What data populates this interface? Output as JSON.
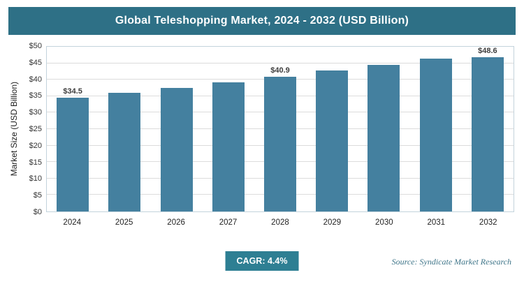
{
  "header": {
    "title": "Global Teleshopping Market, 2024 - 2032 (USD Billion)"
  },
  "chart_data": {
    "type": "bar",
    "title": "Global Teleshopping Market, 2024 - 2032 (USD Billion)",
    "categories": [
      "2024",
      "2025",
      "2026",
      "2027",
      "2028",
      "2029",
      "2030",
      "2031",
      "2032"
    ],
    "values": [
      34.5,
      36.0,
      37.6,
      39.2,
      40.9,
      42.7,
      44.6,
      46.5,
      48.6
    ],
    "data_labels": [
      "$34.5",
      null,
      null,
      null,
      "$40.9",
      null,
      null,
      null,
      "$48.6"
    ],
    "xlabel": "",
    "ylabel": "Market Size (USD Billion)",
    "ylim": [
      0,
      50
    ],
    "ytick_step": 5,
    "ytick_prefix": "$",
    "grid": true,
    "legend": false,
    "bar_color": "#44809f"
  },
  "colors": {
    "header_bg": "#2e7086",
    "bar": "#44809f",
    "badge_bg": "#2e7f93",
    "source_text": "#3f7589"
  },
  "footer": {
    "cagr_label": "CAGR: 4.4%",
    "source": "Source: Syndicate Market Research"
  }
}
